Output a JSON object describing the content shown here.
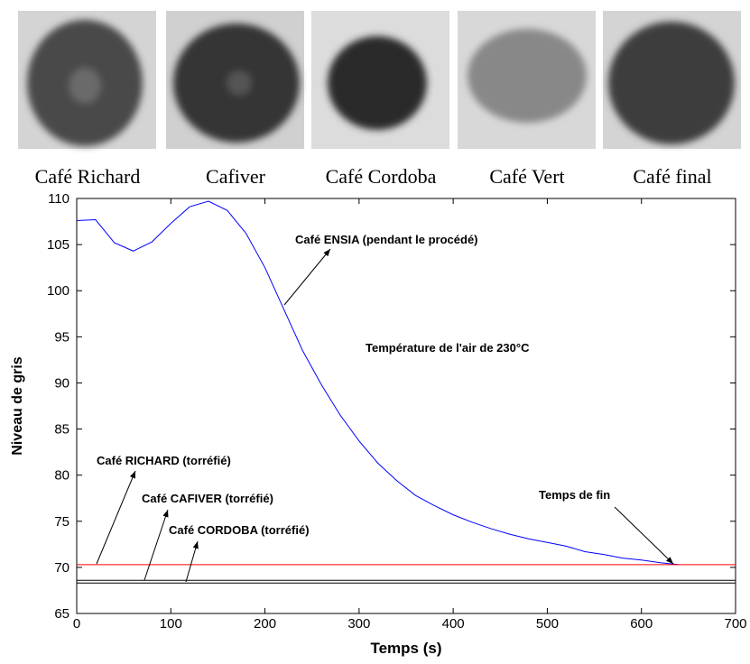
{
  "images": [
    {
      "label": "Café Richard"
    },
    {
      "label": "Cafiver"
    },
    {
      "label": "Café Cordoba"
    },
    {
      "label": "Café Vert"
    },
    {
      "label": "Café final"
    }
  ],
  "chart_data": {
    "type": "line",
    "xlabel": "Temps (s)",
    "ylabel": "Niveau de gris",
    "xlim": [
      0,
      700
    ],
    "ylim": [
      65,
      110
    ],
    "xticks": [
      0,
      100,
      200,
      300,
      400,
      500,
      600,
      700
    ],
    "yticks": [
      65,
      70,
      75,
      80,
      85,
      90,
      95,
      100,
      105,
      110
    ],
    "series": [
      {
        "color": "#0000ff",
        "x": [
          0,
          20,
          40,
          60,
          80,
          100,
          120,
          140,
          160,
          180,
          200,
          220,
          240,
          260,
          280,
          300,
          320,
          340,
          360,
          380,
          400,
          420,
          440,
          460,
          480,
          500,
          520,
          540,
          560,
          580,
          600,
          620,
          640
        ],
        "values": [
          107.6,
          107.7,
          105.2,
          104.3,
          105.3,
          107.3,
          109.1,
          109.7,
          108.7,
          106.2,
          102.5,
          98,
          93.5,
          89.8,
          86.5,
          83.7,
          81.3,
          79.4,
          77.8,
          76.7,
          75.7,
          74.9,
          74.2,
          73.6,
          73.1,
          72.7,
          72.3,
          71.7,
          71.4,
          71,
          70.8,
          70.5,
          70.3
        ]
      },
      {
        "color": "#ff0000",
        "x": [
          0,
          700
        ],
        "values": [
          70.3,
          70.3
        ]
      },
      {
        "color": "#000000",
        "x": [
          0,
          700
        ],
        "values": [
          68.6,
          68.6
        ]
      },
      {
        "color": "#000000",
        "x": [
          0,
          700
        ],
        "values": [
          68.3,
          68.3
        ]
      }
    ],
    "annotations": [
      "Café ENSIA (pendant le procédé)",
      "Température de l'air de 230°C",
      "Café RICHARD (torréfié)",
      "Café CAFIVER (torréfié)",
      "Café CORDOBA (torréfié)",
      "Temps de fin"
    ]
  }
}
